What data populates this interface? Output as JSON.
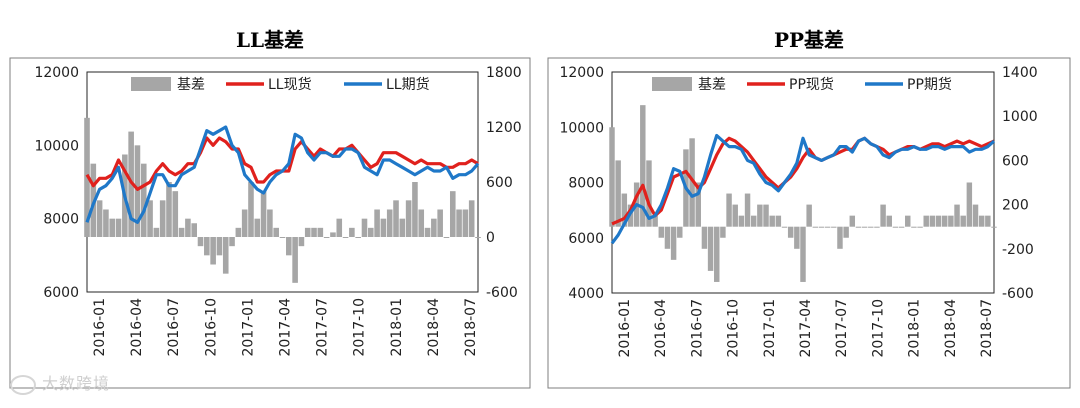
{
  "watermark": {
    "text": "大数跨境"
  },
  "chart_data": [
    {
      "type": "line",
      "title": "LL基差",
      "xlabel": "",
      "ylabel": "",
      "x_ticks": [
        "2016-01",
        "2016-04",
        "2016-07",
        "2016-10",
        "2017-01",
        "2017-04",
        "2017-07",
        "2017-10",
        "2018-01",
        "2018-04",
        "2018-07"
      ],
      "x_range": [
        0,
        31
      ],
      "y_left": {
        "min": 6000,
        "max": 12000,
        "ticks": [
          6000,
          8000,
          10000,
          12000
        ]
      },
      "y_right": {
        "min": -600,
        "max": 1800,
        "ticks": [
          -600,
          0,
          600,
          1200,
          1800
        ]
      },
      "legend": {
        "position": "top",
        "entries": [
          "基差",
          "LL现货",
          "LL期货"
        ]
      },
      "colors": {
        "basis": "#a6a6a6",
        "spot": "#e0211d",
        "futures": "#1f78c8"
      },
      "series": [
        {
          "name": "LL现货",
          "axis": "left",
          "x": [
            0,
            0.5,
            1,
            1.5,
            2,
            2.5,
            3,
            3.5,
            4,
            4.5,
            5,
            5.5,
            6,
            6.5,
            7,
            7.5,
            8,
            8.5,
            9,
            9.5,
            10,
            10.5,
            11,
            11.5,
            12,
            12.5,
            13,
            13.5,
            14,
            14.5,
            15,
            15.5,
            16,
            16.5,
            17,
            17.5,
            18,
            18.5,
            19,
            19.5,
            20,
            20.5,
            21,
            21.5,
            22,
            22.5,
            23,
            23.5,
            24,
            24.5,
            25,
            25.5,
            26,
            26.5,
            27,
            27.5,
            28,
            28.5,
            29,
            29.5,
            30,
            30.5,
            31
          ],
          "values": [
            9200,
            8900,
            9100,
            9100,
            9200,
            9600,
            9300,
            9000,
            8800,
            8900,
            9000,
            9300,
            9500,
            9300,
            9200,
            9300,
            9500,
            9500,
            9800,
            10200,
            10000,
            10200,
            10100,
            9900,
            9900,
            9500,
            9400,
            9000,
            9000,
            9200,
            9300,
            9300,
            9300,
            9900,
            10100,
            9900,
            9700,
            9900,
            9800,
            9700,
            9900,
            9900,
            10000,
            9800,
            9600,
            9400,
            9500,
            9800,
            9800,
            9800,
            9700,
            9600,
            9500,
            9600,
            9500,
            9500,
            9500,
            9400,
            9400,
            9500,
            9500,
            9600,
            9500
          ]
        },
        {
          "name": "LL期货",
          "axis": "left",
          "x": [
            0,
            0.5,
            1,
            1.5,
            2,
            2.5,
            3,
            3.5,
            4,
            4.5,
            5,
            5.5,
            6,
            6.5,
            7,
            7.5,
            8,
            8.5,
            9,
            9.5,
            10,
            10.5,
            11,
            11.5,
            12,
            12.5,
            13,
            13.5,
            14,
            14.5,
            15,
            15.5,
            16,
            16.5,
            17,
            17.5,
            18,
            18.5,
            19,
            19.5,
            20,
            20.5,
            21,
            21.5,
            22,
            22.5,
            23,
            23.5,
            24,
            24.5,
            25,
            25.5,
            26,
            26.5,
            27,
            27.5,
            28,
            28.5,
            29,
            29.5,
            30,
            30.5,
            31
          ],
          "values": [
            7900,
            8400,
            8800,
            8900,
            9100,
            9400,
            8600,
            8000,
            7900,
            8200,
            8700,
            9200,
            9200,
            8900,
            8900,
            9200,
            9300,
            9400,
            9900,
            10400,
            10300,
            10400,
            10500,
            10000,
            9800,
            9200,
            9000,
            8800,
            8700,
            9000,
            9200,
            9300,
            9500,
            10300,
            10200,
            9800,
            9600,
            9800,
            9800,
            9700,
            9700,
            9900,
            9900,
            9800,
            9400,
            9300,
            9200,
            9600,
            9600,
            9500,
            9400,
            9300,
            9200,
            9300,
            9400,
            9300,
            9300,
            9400,
            9100,
            9200,
            9200,
            9300,
            9500
          ]
        },
        {
          "name": "基差",
          "axis": "right",
          "x": [
            0,
            0.5,
            1,
            1.5,
            2,
            2.5,
            3,
            3.5,
            4,
            4.5,
            5,
            5.5,
            6,
            6.5,
            7,
            7.5,
            8,
            8.5,
            9,
            9.5,
            10,
            10.5,
            11,
            11.5,
            12,
            12.5,
            13,
            13.5,
            14,
            14.5,
            15,
            15.5,
            16,
            16.5,
            17,
            17.5,
            18,
            18.5,
            19,
            19.5,
            20,
            20.5,
            21,
            21.5,
            22,
            22.5,
            23,
            23.5,
            24,
            24.5,
            25,
            25.5,
            26,
            26.5,
            27,
            27.5,
            28,
            28.5,
            29,
            29.5,
            30,
            30.5,
            31
          ],
          "values": [
            1300,
            800,
            400,
            300,
            200,
            200,
            900,
            1150,
            1000,
            800,
            400,
            100,
            400,
            600,
            500,
            100,
            200,
            150,
            -100,
            -200,
            -300,
            -200,
            -400,
            -100,
            100,
            300,
            600,
            200,
            500,
            300,
            100,
            0,
            -200,
            -500,
            -100,
            100,
            100,
            100,
            0,
            50,
            200,
            0,
            100,
            0,
            200,
            100,
            300,
            200,
            300,
            400,
            200,
            400,
            600,
            300,
            100,
            200,
            300,
            0,
            500,
            300,
            300,
            400,
            0
          ]
        }
      ]
    },
    {
      "type": "line",
      "title": "PP基差",
      "xlabel": "",
      "ylabel": "",
      "x_ticks": [
        "2016-01",
        "2016-04",
        "2016-07",
        "2016-10",
        "2017-01",
        "2017-04",
        "2017-07",
        "2017-10",
        "2018-01",
        "2018-04",
        "2018-07"
      ],
      "x_range": [
        0,
        31
      ],
      "y_left": {
        "min": 4000,
        "max": 12000,
        "ticks": [
          4000,
          6000,
          8000,
          10000,
          12000
        ]
      },
      "y_right": {
        "min": -600,
        "max": 1400,
        "ticks": [
          -600,
          -200,
          200,
          600,
          1000,
          1400
        ]
      },
      "legend": {
        "position": "top",
        "entries": [
          "基差",
          "PP现货",
          "PP期货"
        ]
      },
      "colors": {
        "basis": "#a6a6a6",
        "spot": "#e0211d",
        "futures": "#1f78c8"
      },
      "series": [
        {
          "name": "PP现货",
          "axis": "left",
          "x": [
            0,
            0.5,
            1,
            1.5,
            2,
            2.5,
            3,
            3.5,
            4,
            4.5,
            5,
            5.5,
            6,
            6.5,
            7,
            7.5,
            8,
            8.5,
            9,
            9.5,
            10,
            10.5,
            11,
            11.5,
            12,
            12.5,
            13,
            13.5,
            14,
            14.5,
            15,
            15.5,
            16,
            16.5,
            17,
            17.5,
            18,
            18.5,
            19,
            19.5,
            20,
            20.5,
            21,
            21.5,
            22,
            22.5,
            23,
            23.5,
            24,
            24.5,
            25,
            25.5,
            26,
            26.5,
            27,
            27.5,
            28,
            28.5,
            29,
            29.5,
            30,
            30.5,
            31
          ],
          "values": [
            6500,
            6600,
            6700,
            7000,
            7500,
            7900,
            7200,
            6800,
            7000,
            7600,
            8200,
            8300,
            8400,
            8100,
            7800,
            8000,
            8500,
            9000,
            9400,
            9600,
            9500,
            9300,
            9100,
            8800,
            8500,
            8200,
            8000,
            7800,
            8000,
            8200,
            8500,
            8900,
            9200,
            8900,
            8800,
            8900,
            9000,
            9100,
            9200,
            9200,
            9500,
            9600,
            9400,
            9300,
            9200,
            9000,
            9100,
            9200,
            9300,
            9300,
            9200,
            9300,
            9400,
            9400,
            9300,
            9400,
            9500,
            9400,
            9500,
            9400,
            9300,
            9400,
            9500
          ]
        },
        {
          "name": "PP期货",
          "axis": "left",
          "x": [
            0,
            0.5,
            1,
            1.5,
            2,
            2.5,
            3,
            3.5,
            4,
            4.5,
            5,
            5.5,
            6,
            6.5,
            7,
            7.5,
            8,
            8.5,
            9,
            9.5,
            10,
            10.5,
            11,
            11.5,
            12,
            12.5,
            13,
            13.5,
            14,
            14.5,
            15,
            15.5,
            16,
            16.5,
            17,
            17.5,
            18,
            18.5,
            19,
            19.5,
            20,
            20.5,
            21,
            21.5,
            22,
            22.5,
            23,
            23.5,
            24,
            24.5,
            25,
            25.5,
            26,
            26.5,
            27,
            27.5,
            28,
            28.5,
            29,
            29.5,
            30,
            30.5,
            31
          ],
          "values": [
            5800,
            6100,
            6500,
            6900,
            7200,
            7100,
            6700,
            6800,
            7200,
            7800,
            8500,
            8400,
            7800,
            7500,
            7600,
            8200,
            9000,
            9700,
            9500,
            9300,
            9300,
            9200,
            8800,
            8700,
            8300,
            8000,
            7900,
            7700,
            8000,
            8300,
            8700,
            9600,
            9000,
            8900,
            8800,
            8900,
            9000,
            9300,
            9300,
            9100,
            9500,
            9600,
            9400,
            9300,
            9000,
            8900,
            9100,
            9200,
            9200,
            9300,
            9200,
            9200,
            9300,
            9300,
            9200,
            9300,
            9300,
            9300,
            9100,
            9200,
            9200,
            9300,
            9500
          ]
        },
        {
          "name": "基差",
          "axis": "right",
          "x": [
            0,
            0.5,
            1,
            1.5,
            2,
            2.5,
            3,
            3.5,
            4,
            4.5,
            5,
            5.5,
            6,
            6.5,
            7,
            7.5,
            8,
            8.5,
            9,
            9.5,
            10,
            10.5,
            11,
            11.5,
            12,
            12.5,
            13,
            13.5,
            14,
            14.5,
            15,
            15.5,
            16,
            16.5,
            17,
            17.5,
            18,
            18.5,
            19,
            19.5,
            20,
            20.5,
            21,
            21.5,
            22,
            22.5,
            23,
            23.5,
            24,
            24.5,
            25,
            25.5,
            26,
            26.5,
            27,
            27.5,
            28,
            28.5,
            29,
            29.5,
            30,
            30.5,
            31
          ],
          "values": [
            900,
            600,
            300,
            200,
            400,
            1100,
            600,
            100,
            -100,
            -200,
            -300,
            -100,
            700,
            800,
            400,
            -200,
            -400,
            -500,
            -100,
            300,
            200,
            100,
            300,
            100,
            200,
            200,
            100,
            100,
            0,
            -100,
            -200,
            -500,
            200,
            0,
            0,
            0,
            0,
            -200,
            -100,
            100,
            0,
            0,
            0,
            0,
            200,
            100,
            0,
            0,
            100,
            0,
            0,
            100,
            100,
            100,
            100,
            100,
            200,
            100,
            400,
            200,
            100,
            100,
            0
          ]
        }
      ]
    }
  ]
}
